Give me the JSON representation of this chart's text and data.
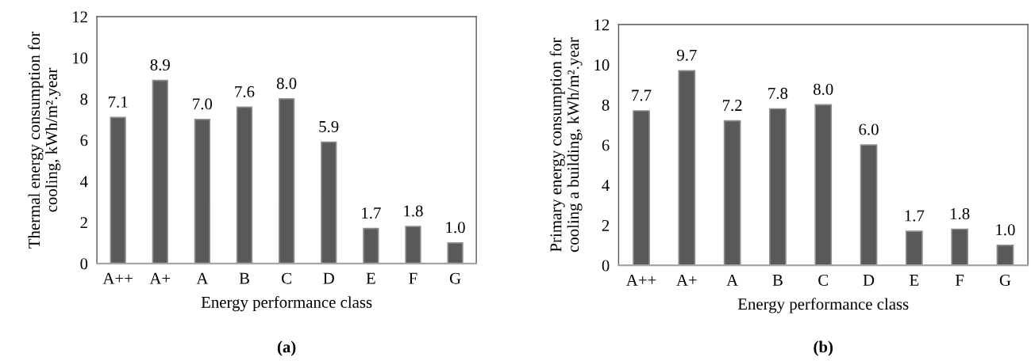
{
  "chart_data": [
    {
      "type": "bar",
      "categories": [
        "A++",
        "A+",
        "A",
        "B",
        "C",
        "D",
        "E",
        "F",
        "G"
      ],
      "values": [
        7.1,
        8.9,
        7.0,
        7.6,
        8.0,
        5.9,
        1.7,
        1.8,
        1.0
      ],
      "value_labels": [
        "7.1",
        "8.9",
        "7.0",
        "7.6",
        "8.0",
        "5.9",
        "1.7",
        "1.8",
        "1.0"
      ],
      "color": "#595959",
      "ylabel": "Thermal energy consumption for\ncooling, kWh/m².year",
      "xlabel": "Energy performance class",
      "ylim": [
        0,
        12
      ],
      "yticks": [
        0,
        2,
        4,
        6,
        8,
        10,
        12
      ],
      "annotations": [
        "(a)"
      ]
    },
    {
      "type": "bar",
      "categories": [
        "A++",
        "A+",
        "A",
        "B",
        "C",
        "D",
        "E",
        "F",
        "G"
      ],
      "values": [
        7.7,
        9.7,
        7.2,
        7.8,
        8.0,
        6.0,
        1.7,
        1.8,
        1.0
      ],
      "value_labels": [
        "7.7",
        "9.7",
        "7.2",
        "7.8",
        "8.0",
        "6.0",
        "1.7",
        "1.8",
        "1.0"
      ],
      "color": "#595959",
      "ylabel": "Primary energy consumption for\ncooling a building, kWh/m².year",
      "xlabel": "Energy performance class",
      "ylim": [
        0,
        12
      ],
      "yticks": [
        0,
        2,
        4,
        6,
        8,
        10,
        12
      ],
      "annotations": [
        "(b)"
      ]
    }
  ]
}
